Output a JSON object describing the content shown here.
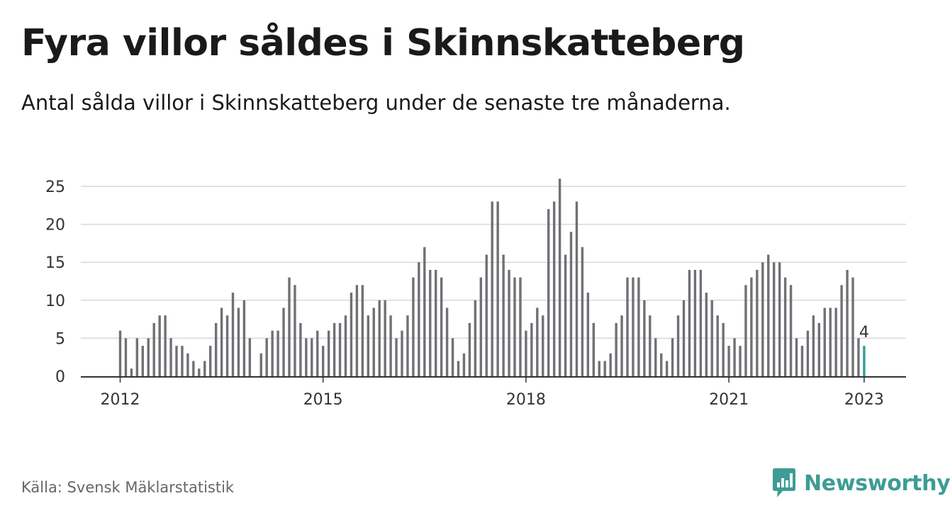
{
  "header": {
    "title": "Fyra villor såldes i Skinnskatteberg",
    "subtitle": "Antal sålda villor i Skinnskatteberg under de senaste tre månaderna."
  },
  "footer": {
    "source": "Källa: Svensk Mäklarstatistik",
    "brand": "Newsworthy"
  },
  "colors": {
    "bar": "#707075",
    "highlight": "#2aa39a",
    "grid": "#d9d9d9",
    "axis": "#333333",
    "brand": "#3d9c94"
  },
  "chart_data": {
    "type": "bar",
    "title": "Fyra villor såldes i Skinnskatteberg",
    "subtitle": "Antal sålda villor i Skinnskatteberg under de senaste tre månaderna.",
    "xlabel": "",
    "ylabel": "",
    "ylim": [
      0,
      26
    ],
    "yticks": [
      0,
      5,
      10,
      15,
      20,
      25
    ],
    "xticks": [
      "2012",
      "2015",
      "2018",
      "2021",
      "2023"
    ],
    "grid": true,
    "start_month": "2012-01",
    "values": [
      6,
      5,
      1,
      5,
      4,
      5,
      7,
      8,
      8,
      5,
      4,
      4,
      3,
      2,
      1,
      2,
      4,
      7,
      9,
      8,
      11,
      9,
      10,
      5,
      null,
      3,
      5,
      6,
      6,
      9,
      13,
      12,
      7,
      5,
      5,
      6,
      4,
      6,
      7,
      7,
      8,
      11,
      12,
      12,
      8,
      9,
      10,
      10,
      8,
      5,
      6,
      8,
      13,
      15,
      17,
      14,
      14,
      13,
      9,
      5,
      2,
      3,
      7,
      10,
      13,
      16,
      23,
      23,
      16,
      14,
      13,
      13,
      6,
      7,
      9,
      8,
      22,
      23,
      26,
      16,
      19,
      23,
      17,
      11,
      7,
      2,
      2,
      3,
      7,
      8,
      13,
      13,
      13,
      10,
      8,
      5,
      3,
      2,
      5,
      8,
      10,
      14,
      14,
      14,
      11,
      10,
      8,
      7,
      4,
      5,
      4,
      12,
      13,
      14,
      15,
      16,
      15,
      15,
      13,
      12,
      5,
      4,
      6,
      8,
      7,
      9,
      9,
      9,
      12,
      14,
      13,
      5,
      4
    ],
    "highlight_last": true,
    "last_label": "4"
  }
}
